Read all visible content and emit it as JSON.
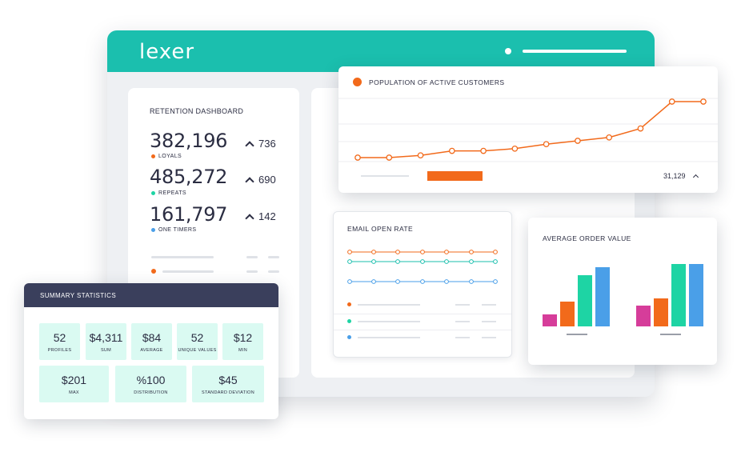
{
  "app": {
    "logo": "lexer"
  },
  "retention": {
    "title": "RETENTION DASHBOARD",
    "metrics": [
      {
        "value": "382,196",
        "label": "LOYALS",
        "delta": "736",
        "color": "#f26a1b"
      },
      {
        "value": "485,272",
        "label": "REPEATS",
        "delta": "690",
        "color": "#1ed4a4"
      },
      {
        "value": "161,797",
        "label": "ONE TIMERS",
        "delta": "142",
        "color": "#4a9fe8"
      }
    ],
    "legend_color": "#f26a1b"
  },
  "summary": {
    "title": "SUMMARY STATISTICS",
    "row1": [
      {
        "value": "52",
        "label": "PROFILES"
      },
      {
        "value": "$4,311",
        "label": "SUM"
      },
      {
        "value": "$84",
        "label": "AVERAGE"
      },
      {
        "value": "52",
        "label": "UNIQUE VALUES"
      },
      {
        "value": "$12",
        "label": "MIN"
      }
    ],
    "row2": [
      {
        "value": "$201",
        "label": "MAX"
      },
      {
        "value": "%100",
        "label": "DISTRIBUTION"
      },
      {
        "value": "$45",
        "label": "STANDARD DEVIATION"
      }
    ]
  },
  "population": {
    "title": "POPULATION OF ACTIVE CUSTOMERS",
    "value": "31,129",
    "accent": "#f26a1b",
    "chart_data": {
      "type": "line",
      "x": [
        1,
        2,
        3,
        4,
        5,
        6,
        7,
        8,
        9,
        10,
        11,
        12
      ],
      "values": [
        10,
        10,
        12,
        16,
        16,
        18,
        22,
        25,
        28,
        36,
        60,
        60
      ],
      "ylim": [
        0,
        70
      ]
    }
  },
  "email": {
    "title": "EMAIL OPEN RATE",
    "lines": [
      {
        "color": "#f26a1b"
      },
      {
        "color": "#1bbfae"
      },
      {
        "color": "#4a9fe8"
      }
    ],
    "legend": [
      {
        "color": "#f26a1b"
      },
      {
        "color": "#1ed4a4"
      },
      {
        "color": "#4a9fe8"
      }
    ]
  },
  "aov": {
    "title": "AVERAGE ORDER VALUE",
    "colors": [
      "#d63d9a",
      "#f26a1b",
      "#1ed4a4",
      "#4a9fe8"
    ],
    "chart_data": {
      "type": "bar",
      "groups": [
        {
          "values": [
            15,
            31,
            64,
            74
          ]
        },
        {
          "values": [
            26,
            35,
            78,
            78
          ]
        }
      ],
      "ylim": [
        0,
        80
      ]
    }
  }
}
